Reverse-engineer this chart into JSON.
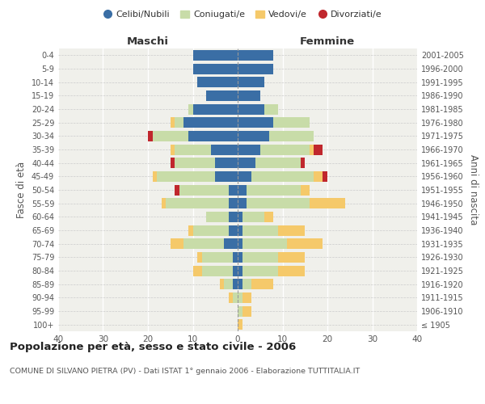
{
  "age_groups": [
    "100+",
    "95-99",
    "90-94",
    "85-89",
    "80-84",
    "75-79",
    "70-74",
    "65-69",
    "60-64",
    "55-59",
    "50-54",
    "45-49",
    "40-44",
    "35-39",
    "30-34",
    "25-29",
    "20-24",
    "15-19",
    "10-14",
    "5-9",
    "0-4"
  ],
  "birth_years": [
    "≤ 1905",
    "1906-1910",
    "1911-1915",
    "1916-1920",
    "1921-1925",
    "1926-1930",
    "1931-1935",
    "1936-1940",
    "1941-1945",
    "1946-1950",
    "1951-1955",
    "1956-1960",
    "1961-1965",
    "1966-1970",
    "1971-1975",
    "1976-1980",
    "1981-1985",
    "1986-1990",
    "1991-1995",
    "1996-2000",
    "2001-2005"
  ],
  "male_celibi": [
    0,
    0,
    0,
    1,
    1,
    1,
    3,
    2,
    2,
    2,
    2,
    5,
    5,
    6,
    11,
    12,
    10,
    7,
    9,
    10,
    10
  ],
  "male_coniugati": [
    0,
    0,
    1,
    2,
    7,
    7,
    9,
    8,
    5,
    14,
    11,
    13,
    9,
    8,
    8,
    2,
    1,
    0,
    0,
    0,
    0
  ],
  "male_vedovi": [
    0,
    0,
    1,
    1,
    2,
    1,
    3,
    1,
    0,
    1,
    0,
    1,
    0,
    1,
    0,
    1,
    0,
    0,
    0,
    0,
    0
  ],
  "male_divorziati": [
    0,
    0,
    0,
    0,
    0,
    0,
    0,
    0,
    0,
    0,
    1,
    0,
    1,
    0,
    1,
    0,
    0,
    0,
    0,
    0,
    0
  ],
  "female_celibi": [
    0,
    0,
    0,
    1,
    1,
    1,
    1,
    1,
    1,
    2,
    2,
    3,
    4,
    5,
    7,
    8,
    6,
    5,
    6,
    8,
    8
  ],
  "female_coniugati": [
    0,
    1,
    1,
    2,
    8,
    8,
    10,
    8,
    5,
    14,
    12,
    14,
    10,
    11,
    10,
    8,
    3,
    0,
    0,
    0,
    0
  ],
  "female_vedovi": [
    1,
    2,
    2,
    5,
    6,
    6,
    8,
    6,
    2,
    8,
    2,
    2,
    0,
    1,
    0,
    0,
    0,
    0,
    0,
    0,
    0
  ],
  "female_divorziati": [
    0,
    0,
    0,
    0,
    0,
    0,
    0,
    0,
    0,
    0,
    0,
    1,
    1,
    2,
    0,
    0,
    0,
    0,
    0,
    0,
    0
  ],
  "colors": {
    "celibi": "#3a6ea5",
    "coniugati": "#c8dca8",
    "vedovi": "#f5c96a",
    "divorziati": "#c0272d"
  },
  "title": "Popolazione per età, sesso e stato civile - 2006",
  "subtitle": "COMUNE DI SILVANO PIETRA (PV) - Dati ISTAT 1° gennaio 2006 - Elaborazione TUTTITALIA.IT",
  "xlabel_left": "Maschi",
  "xlabel_right": "Femmine",
  "ylabel_left": "Fasce di età",
  "ylabel_right": "Anni di nascita",
  "xlim": 40,
  "legend_labels": [
    "Celibi/Nubili",
    "Coniugati/e",
    "Vedovi/e",
    "Divorziati/e"
  ],
  "background_color": "#f0f0eb"
}
